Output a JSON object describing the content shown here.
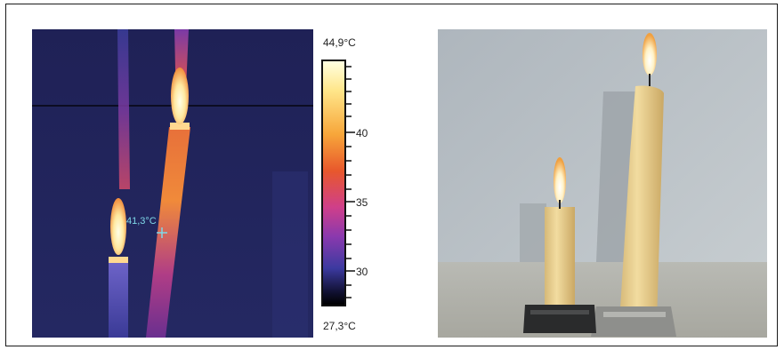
{
  "thermal": {
    "max_label": "44,9°C",
    "min_label": "27,3°C",
    "ticks": [
      "40",
      "35",
      "30"
    ],
    "spot_label": "41,3°C"
  },
  "colors": {
    "background_thermal": "#24265e",
    "scale_top": "#ffffd8",
    "scale_mid": "#d44a8a",
    "scale_bottom": "#000000",
    "spot_cursor": "#7fd8e8"
  }
}
